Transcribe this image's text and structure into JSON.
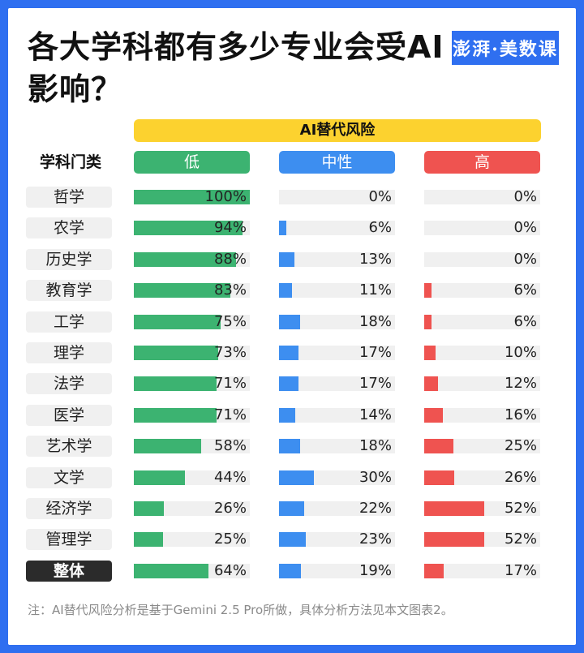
{
  "title": "各大学科都有多少专业会受AI影响？",
  "logo_text": "澎湃·美数课",
  "header": "AI替代风险",
  "subject_header": "学科门类",
  "note": "注：AI替代风险分析是基于Gemini 2.5 Pro所做，具体分析方法见本文图表2。",
  "colors": {
    "low": "#3cb371",
    "mid": "#3d8ef0",
    "high": "#ef5350",
    "track": "#f0f0f0"
  },
  "chart_data": {
    "type": "bar",
    "title": "各大学科都有多少专业会受AI影响？",
    "group_label": "AI替代风险",
    "categories": [
      "哲学",
      "农学",
      "历史学",
      "教育学",
      "工学",
      "理学",
      "法学",
      "医学",
      "艺术学",
      "文学",
      "经济学",
      "管理学",
      "整体"
    ],
    "series": [
      {
        "name": "低",
        "values": [
          100,
          94,
          88,
          83,
          75,
          73,
          71,
          71,
          58,
          44,
          26,
          25,
          64
        ]
      },
      {
        "name": "中性",
        "values": [
          0,
          6,
          13,
          11,
          18,
          17,
          17,
          14,
          18,
          30,
          22,
          23,
          19
        ]
      },
      {
        "name": "高",
        "values": [
          0,
          0,
          0,
          6,
          6,
          10,
          12,
          16,
          25,
          26,
          52,
          52,
          17
        ]
      }
    ],
    "unit": "%",
    "ylim": [
      0,
      100
    ]
  }
}
